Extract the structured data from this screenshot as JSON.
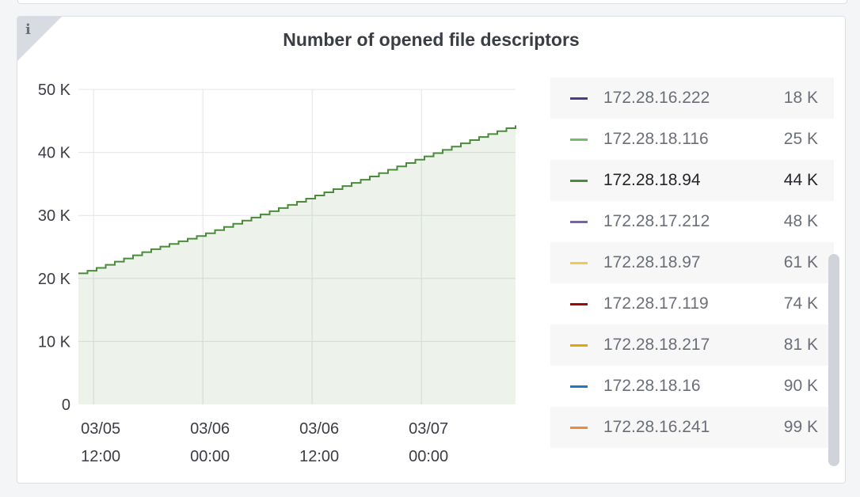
{
  "panel": {
    "title": "Number of opened file descriptors",
    "info_icon": "i"
  },
  "legend": [
    {
      "ip": "172.28.16.222",
      "value": "18 K",
      "color": "#4e3a8a"
    },
    {
      "ip": "172.28.18.116",
      "value": "25 K",
      "color": "#73bf69"
    },
    {
      "ip": "172.28.18.94",
      "value": "44 K",
      "color": "#4b8b3b",
      "highlight": true
    },
    {
      "ip": "172.28.17.212",
      "value": "48 K",
      "color": "#7c5fb5"
    },
    {
      "ip": "172.28.18.97",
      "value": "61 K",
      "color": "#f2c94c"
    },
    {
      "ip": "172.28.17.119",
      "value": "74 K",
      "color": "#9e0a0a"
    },
    {
      "ip": "172.28.18.217",
      "value": "81 K",
      "color": "#e0a800"
    },
    {
      "ip": "172.28.18.16",
      "value": "90 K",
      "color": "#1f78c1"
    },
    {
      "ip": "172.28.16.241",
      "value": "99 K",
      "color": "#f08a3a"
    }
  ],
  "chart_data": {
    "type": "area",
    "ylim": [
      0,
      50000
    ],
    "yticks": [
      "0",
      "10 K",
      "20 K",
      "30 K",
      "40 K",
      "50 K"
    ],
    "xticks": [
      [
        "03/05",
        "12:00"
      ],
      [
        "03/06",
        "00:00"
      ],
      [
        "03/06",
        "12:00"
      ],
      [
        "03/07",
        "00:00"
      ]
    ],
    "grid": true,
    "series": [
      {
        "name": "172.28.18.94",
        "color": "#4b8b3b",
        "x": [
          "03/05 10:20",
          "03/05 12:00",
          "03/05 18:00",
          "03/06 00:00",
          "03/06 06:00",
          "03/06 12:00",
          "03/06 18:00",
          "03/07 00:00",
          "03/07 06:00",
          "03/07 10:20"
        ],
        "y": [
          20800,
          21500,
          24500,
          27000,
          30000,
          33000,
          36000,
          39200,
          42300,
          44300
        ]
      }
    ]
  }
}
